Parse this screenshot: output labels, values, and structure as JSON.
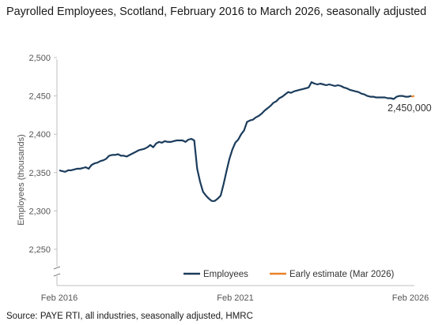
{
  "title": "Payrolled Employees, Scotland, February 2016 to March 2026, seasonally adjusted",
  "source": "Source: PAYE RTI, all industries, seasonally adjusted, HMRC",
  "chart_data": {
    "type": "line",
    "ylabel": "Employees (thousands)",
    "ylim": [
      2200,
      2500
    ],
    "yticks": [
      "2,500",
      "2,450",
      "2,400",
      "2,350",
      "2,300",
      "2,250"
    ],
    "ytick_values": [
      2500,
      2450,
      2400,
      2350,
      2300,
      2250
    ],
    "axis_break": true,
    "xticks": [
      "Feb 2016",
      "Feb 2021",
      "Feb 2026"
    ],
    "xtick_values": [
      0,
      60,
      120
    ],
    "x_unit": "months since Feb 2016",
    "annotation": "2,450,000",
    "legend_position": "bottom-right",
    "colors": {
      "employees": "#1b3c5c",
      "estimate": "#e8822a",
      "axis": "#bfbfbf"
    },
    "series": [
      {
        "name": "Employees",
        "x": [
          0,
          1,
          2,
          3,
          4,
          5,
          6,
          7,
          8,
          9,
          10,
          11,
          12,
          13,
          14,
          15,
          16,
          17,
          18,
          19,
          20,
          21,
          22,
          23,
          24,
          25,
          26,
          27,
          28,
          29,
          30,
          31,
          32,
          33,
          34,
          35,
          36,
          37,
          38,
          39,
          40,
          41,
          42,
          43,
          44,
          45,
          46,
          47,
          48,
          49,
          50,
          51,
          52,
          53,
          54,
          55,
          56,
          57,
          58,
          59,
          60,
          61,
          62,
          63,
          64,
          65,
          66,
          67,
          68,
          69,
          70,
          71,
          72,
          73,
          74,
          75,
          76,
          77,
          78,
          79,
          80,
          81,
          82,
          83,
          84,
          85,
          86,
          87,
          88,
          89,
          90,
          91,
          92,
          93,
          94,
          95,
          96,
          97,
          98,
          99,
          100,
          101,
          102,
          103,
          104,
          105,
          106,
          107,
          108,
          109,
          110,
          111,
          112,
          113,
          114,
          115,
          116,
          117,
          118,
          119,
          120
        ],
        "values": [
          2353,
          2352,
          2351,
          2353,
          2353,
          2354,
          2355,
          2355,
          2356,
          2357,
          2355,
          2360,
          2362,
          2363,
          2365,
          2366,
          2368,
          2372,
          2373,
          2373,
          2374,
          2372,
          2372,
          2371,
          2373,
          2375,
          2377,
          2379,
          2380,
          2381,
          2383,
          2386,
          2383,
          2388,
          2390,
          2389,
          2391,
          2390,
          2390,
          2391,
          2392,
          2392,
          2392,
          2390,
          2393,
          2394,
          2392,
          2355,
          2338,
          2325,
          2320,
          2316,
          2313,
          2313,
          2316,
          2320,
          2335,
          2352,
          2368,
          2380,
          2389,
          2393,
          2400,
          2405,
          2416,
          2418,
          2419,
          2422,
          2424,
          2427,
          2431,
          2434,
          2437,
          2441,
          2443,
          2447,
          2449,
          2452,
          2455,
          2454,
          2456,
          2457,
          2458,
          2459,
          2460,
          2461,
          2468,
          2466,
          2465,
          2466,
          2465,
          2464,
          2465,
          2464,
          2463,
          2464,
          2463,
          2461,
          2460,
          2458,
          2457,
          2456,
          2455,
          2453,
          2452,
          2450,
          2449,
          2449,
          2448,
          2448,
          2448,
          2448,
          2447,
          2447,
          2446,
          2449,
          2450,
          2450,
          2449,
          2449,
          2450
        ]
      },
      {
        "name": "Early estimate (Mar 2026)",
        "x": [
          120,
          121
        ],
        "values": [
          2449,
          2450
        ]
      }
    ]
  }
}
